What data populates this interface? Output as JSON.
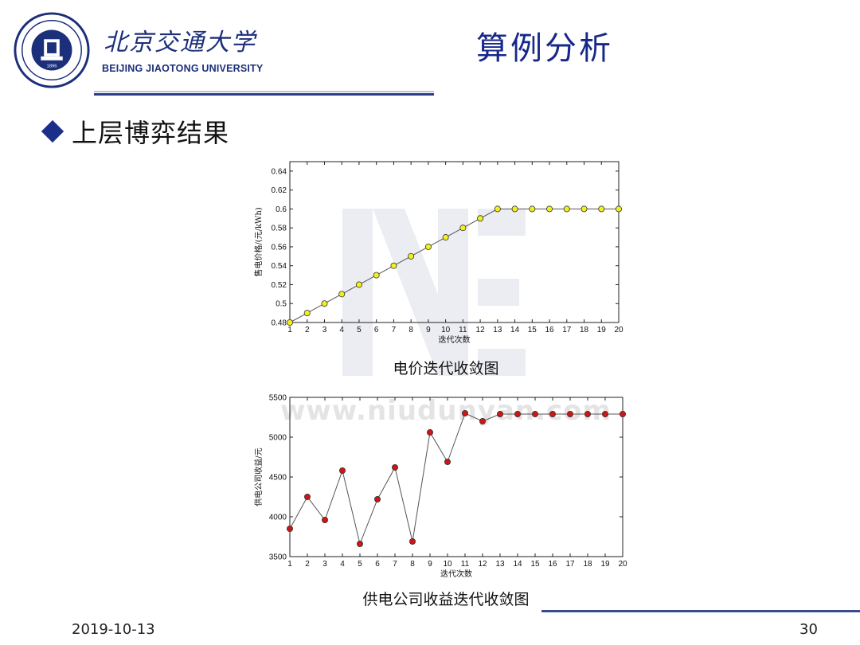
{
  "header": {
    "university_cn": "北京交通大学",
    "university_en": "BEIJING JIAOTONG UNIVERSITY",
    "page_title": "算例分析",
    "logo_icon": "university-seal-icon",
    "brand_color": "#1c2f7a"
  },
  "section": {
    "bullet_icon": "diamond-bullet-icon",
    "heading": "上层博弈结果"
  },
  "watermark": {
    "text": "www.niudunyan.com"
  },
  "captions": {
    "chart1": "电价迭代收敛图",
    "chart2": "供电公司收益迭代收敛图"
  },
  "footer": {
    "date": "2019-10-13",
    "page_number": "30"
  },
  "chart_data": [
    {
      "type": "line",
      "xlabel": "迭代次数",
      "ylabel": "售电价格/(元/kWh)",
      "x": [
        1,
        2,
        3,
        4,
        5,
        6,
        7,
        8,
        9,
        10,
        11,
        12,
        13,
        14,
        15,
        16,
        17,
        18,
        19,
        20
      ],
      "x_ticks": [
        "1",
        "2",
        "3",
        "4",
        "5",
        "6",
        "7",
        "8",
        "9",
        "10",
        "11",
        "12",
        "13",
        "14",
        "15",
        "16",
        "17",
        "18",
        "19",
        "20"
      ],
      "y_ticks": [
        "0.48",
        "0.5",
        "0.52",
        "0.54",
        "0.56",
        "0.58",
        "0.6",
        "0.62",
        "0.64"
      ],
      "y_tick_values": [
        0.48,
        0.5,
        0.52,
        0.54,
        0.56,
        0.58,
        0.6,
        0.62,
        0.64
      ],
      "xlim": [
        1,
        20
      ],
      "ylim": [
        0.48,
        0.65
      ],
      "grid": false,
      "marker_color": "#f2ef1e",
      "series": [
        {
          "values": [
            0.48,
            0.49,
            0.5,
            0.51,
            0.52,
            0.53,
            0.54,
            0.55,
            0.56,
            0.57,
            0.58,
            0.59,
            0.6,
            0.6,
            0.6,
            0.6,
            0.6,
            0.6,
            0.6,
            0.6
          ]
        }
      ]
    },
    {
      "type": "line",
      "xlabel": "迭代次数",
      "ylabel": "供电公司收益/元",
      "x": [
        1,
        2,
        3,
        4,
        5,
        6,
        7,
        8,
        9,
        10,
        11,
        12,
        13,
        14,
        15,
        16,
        17,
        18,
        19,
        20
      ],
      "x_ticks": [
        "1",
        "2",
        "3",
        "4",
        "5",
        "6",
        "7",
        "8",
        "9",
        "10",
        "11",
        "12",
        "13",
        "14",
        "15",
        "16",
        "17",
        "18",
        "19",
        "20"
      ],
      "y_ticks": [
        "3500",
        "4000",
        "4500",
        "5000",
        "5500"
      ],
      "y_tick_values": [
        3500,
        4000,
        4500,
        5000,
        5500
      ],
      "xlim": [
        1,
        20
      ],
      "ylim": [
        3500,
        5500
      ],
      "grid": false,
      "marker_color": "#d11414",
      "series": [
        {
          "values": [
            3850,
            4250,
            3960,
            4580,
            3660,
            4220,
            4620,
            3690,
            5060,
            4690,
            5300,
            5200,
            5290,
            5290,
            5290,
            5290,
            5290,
            5290,
            5290,
            5290
          ]
        }
      ]
    }
  ]
}
